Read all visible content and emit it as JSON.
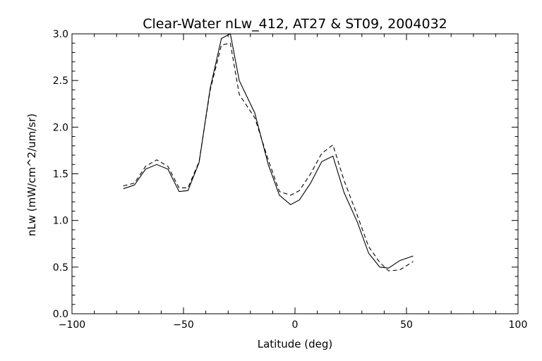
{
  "chart_data": {
    "type": "line",
    "title": "Clear-Water nLw_412, AT27 & ST09, 2004032",
    "xlabel": "Latitude (deg)",
    "ylabel": "nLw (mW/cm^2/um/sr)",
    "xlim": [
      -100,
      100
    ],
    "ylim": [
      0.0,
      3.0
    ],
    "x_ticks": [
      "−100",
      "−50",
      "0",
      "50",
      "100"
    ],
    "x_tick_values": [
      -100,
      -50,
      0,
      50,
      100
    ],
    "x_minor_step": 10,
    "y_ticks": [
      "0.0",
      "0.5",
      "1.0",
      "1.5",
      "2.0",
      "2.5",
      "3.0"
    ],
    "y_tick_values": [
      0.0,
      0.5,
      1.0,
      1.5,
      2.0,
      2.5,
      3.0
    ],
    "y_minor_step": 0.1,
    "grid": false,
    "series": [
      {
        "style": "solid",
        "color": "#000000",
        "points": [
          [
            -77,
            1.34
          ],
          [
            -72,
            1.38
          ],
          [
            -67,
            1.55
          ],
          [
            -62,
            1.6
          ],
          [
            -57,
            1.55
          ],
          [
            -52,
            1.31
          ],
          [
            -48,
            1.32
          ],
          [
            -43,
            1.62
          ],
          [
            -38,
            2.42
          ],
          [
            -33,
            2.95
          ],
          [
            -29,
            3.0
          ],
          [
            -25,
            2.5
          ],
          [
            -18,
            2.15
          ],
          [
            -12,
            1.6
          ],
          [
            -7,
            1.27
          ],
          [
            -2,
            1.17
          ],
          [
            2,
            1.22
          ],
          [
            7,
            1.4
          ],
          [
            12,
            1.63
          ],
          [
            17,
            1.69
          ],
          [
            22,
            1.3
          ],
          [
            28,
            0.98
          ],
          [
            33,
            0.65
          ],
          [
            38,
            0.5
          ],
          [
            42,
            0.49
          ],
          [
            47,
            0.57
          ],
          [
            53,
            0.62
          ]
        ]
      },
      {
        "style": "dashed",
        "color": "#000000",
        "points": [
          [
            -77,
            1.37
          ],
          [
            -72,
            1.4
          ],
          [
            -67,
            1.58
          ],
          [
            -62,
            1.65
          ],
          [
            -57,
            1.58
          ],
          [
            -52,
            1.35
          ],
          [
            -48,
            1.35
          ],
          [
            -43,
            1.63
          ],
          [
            -38,
            2.4
          ],
          [
            -33,
            2.88
          ],
          [
            -29,
            2.9
          ],
          [
            -25,
            2.35
          ],
          [
            -18,
            2.1
          ],
          [
            -12,
            1.65
          ],
          [
            -7,
            1.31
          ],
          [
            -2,
            1.27
          ],
          [
            2,
            1.32
          ],
          [
            7,
            1.5
          ],
          [
            12,
            1.72
          ],
          [
            17,
            1.81
          ],
          [
            22,
            1.43
          ],
          [
            28,
            1.05
          ],
          [
            33,
            0.72
          ],
          [
            38,
            0.55
          ],
          [
            42,
            0.46
          ],
          [
            47,
            0.47
          ],
          [
            53,
            0.56
          ]
        ]
      }
    ]
  }
}
